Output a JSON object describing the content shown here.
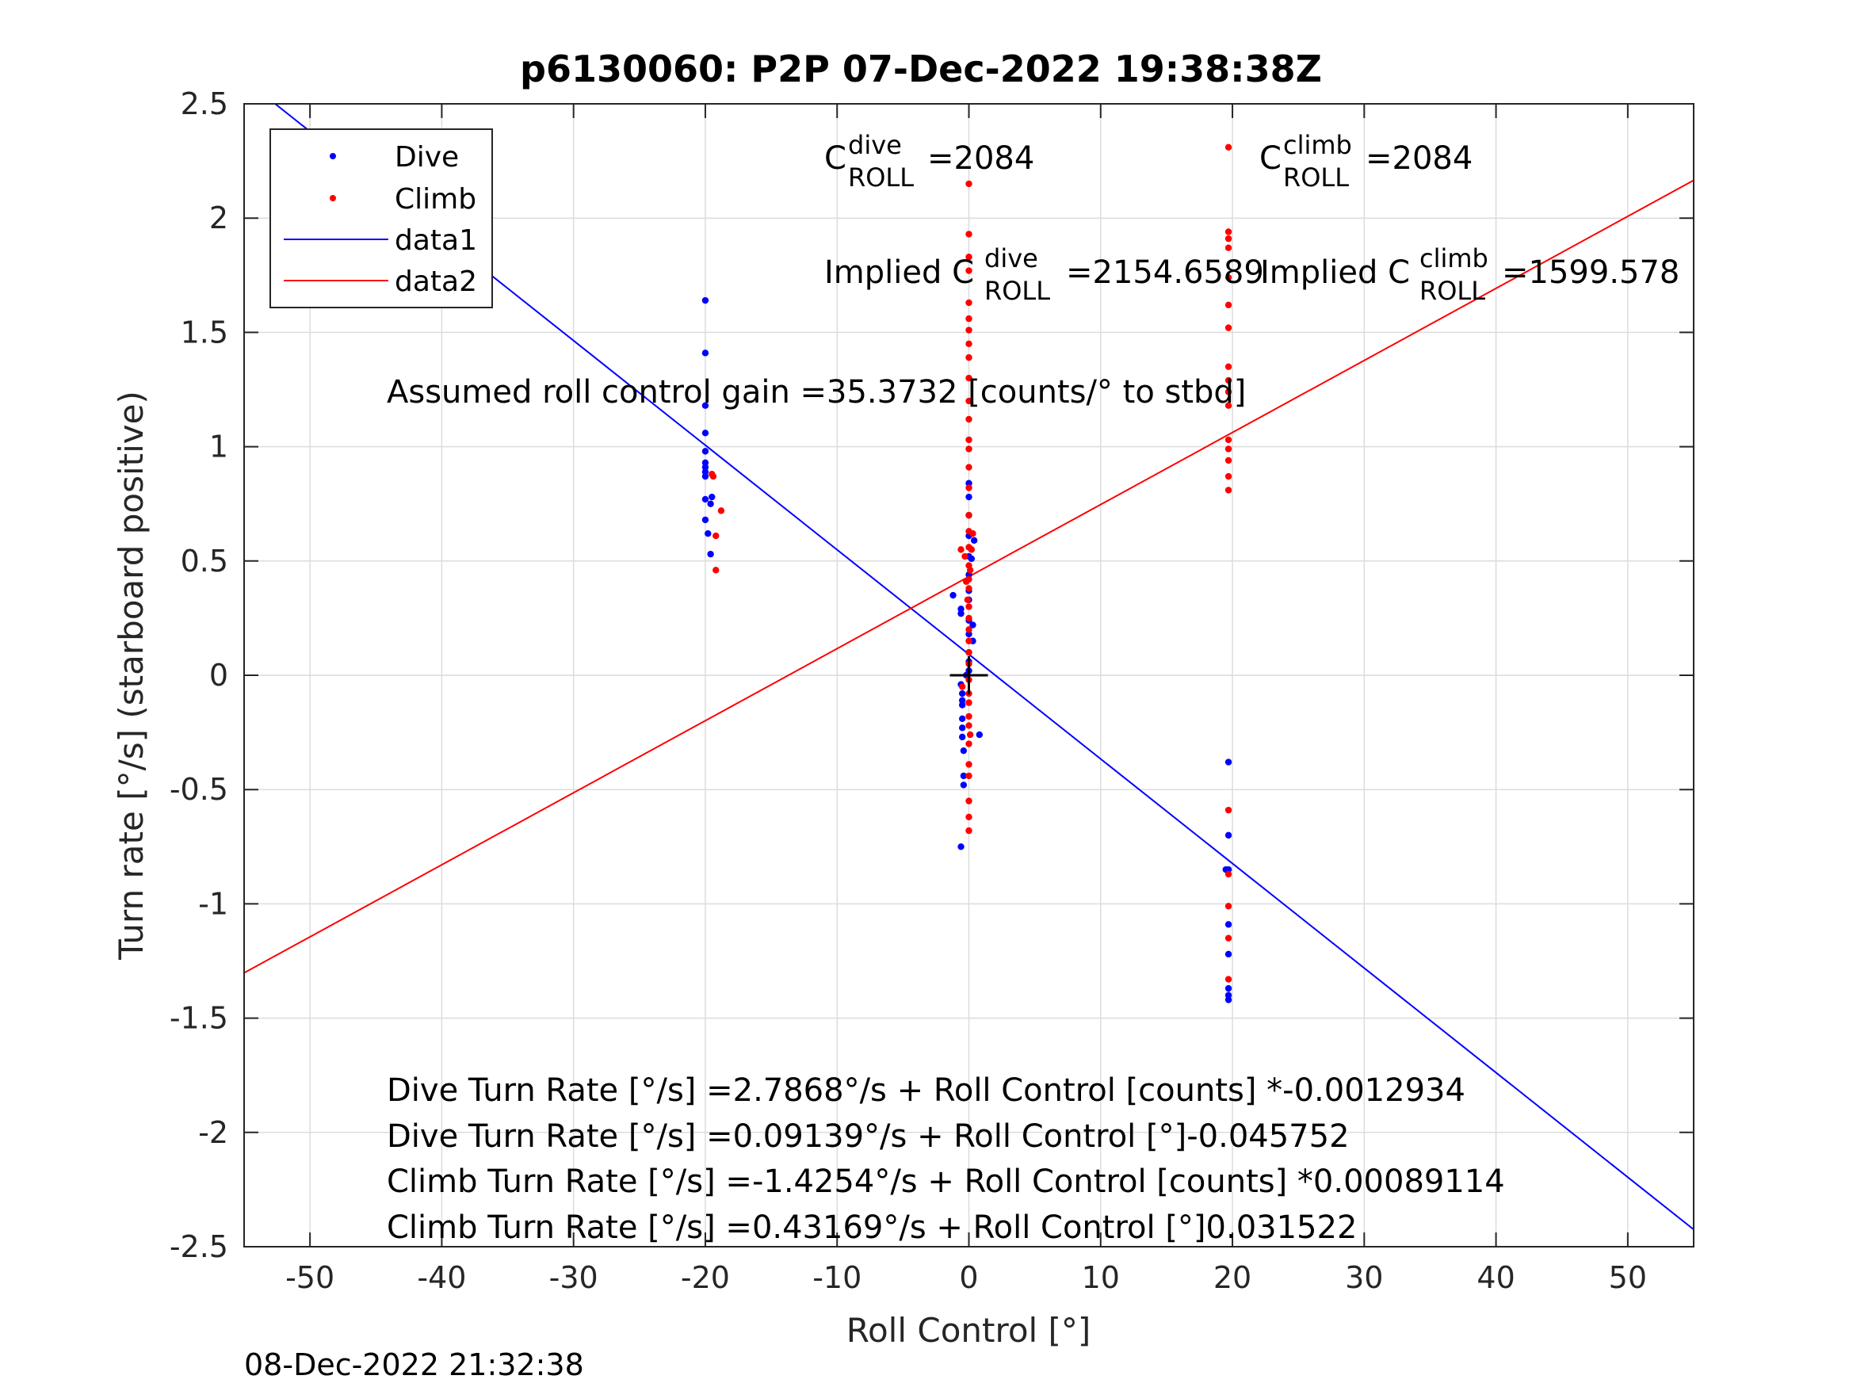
{
  "chart_data": {
    "type": "scatter",
    "title": "p6130060: P2P 07-Dec-2022 19:38:38Z",
    "xlabel": "Roll Control [°]",
    "ylabel": "Turn rate [°/s] (starboard positive)",
    "xlim": [
      -55,
      55
    ],
    "ylim": [
      -2.5,
      2.5
    ],
    "x_ticks": [
      -50,
      -40,
      -30,
      -20,
      -10,
      0,
      10,
      20,
      30,
      40,
      50
    ],
    "y_ticks": [
      -2.5,
      -2,
      -1.5,
      -1,
      -0.5,
      0,
      0.5,
      1,
      1.5,
      2,
      2.5
    ],
    "grid": true,
    "legend_position": "top-left",
    "timestamp": "08-Dec-2022 21:32:38",
    "crosshair": {
      "x": 0,
      "y": 0
    },
    "series": [
      {
        "name": "Dive",
        "kind": "points",
        "color": "#0000ff",
        "x": [
          -20,
          -20,
          -20,
          -20,
          -20,
          -20,
          -20,
          -20,
          -20,
          -20,
          -20,
          -19.8,
          -19.6,
          -19.6,
          -19.5,
          -1.2,
          -0.6,
          -0.6,
          -0.6,
          -0.5,
          -0.5,
          -0.5,
          -0.5,
          -0.5,
          -0.5,
          -0.4,
          -0.4,
          -0.4,
          -0.6,
          -0.2,
          0,
          0,
          0,
          0,
          0,
          0,
          0,
          0,
          0,
          0,
          0,
          0,
          0,
          0.2,
          0.3,
          0.3,
          0.4,
          0.8,
          19.7,
          19.7,
          19.7,
          19.7,
          19.7,
          19.7,
          19.7,
          19.7,
          19.5
        ],
        "y": [
          1.64,
          1.41,
          1.18,
          1.06,
          0.98,
          0.93,
          0.91,
          0.89,
          0.87,
          0.77,
          0.68,
          0.62,
          0.53,
          0.75,
          0.78,
          0.35,
          0.29,
          0.27,
          -0.04,
          -0.08,
          -0.11,
          -0.13,
          -0.19,
          -0.23,
          -0.27,
          -0.33,
          -0.44,
          -0.48,
          -0.75,
          0.0,
          0.84,
          0.78,
          0.7,
          0.61,
          0.52,
          0.44,
          0.37,
          0.33,
          0.24,
          0.18,
          0.1,
          0.06,
          0.02,
          0.51,
          0.22,
          0.15,
          0.59,
          -0.26,
          -0.38,
          -0.7,
          -0.85,
          -1.09,
          -1.22,
          -1.37,
          -1.4,
          -1.42,
          -0.85
        ]
      },
      {
        "name": "Climb",
        "kind": "points",
        "color": "#ff0000",
        "x": [
          -19.5,
          -19.4,
          -19.2,
          -19.2,
          -18.8,
          -0.6,
          -0.5,
          -0.3,
          -0.2,
          -0.1,
          0,
          0,
          0,
          0,
          0,
          0,
          0,
          0,
          0,
          0,
          0,
          0,
          0,
          0,
          0,
          0,
          0,
          0,
          0,
          0,
          0,
          0,
          0,
          0,
          0,
          0,
          0,
          0,
          0,
          0,
          0,
          0,
          0,
          0,
          0,
          0,
          0,
          0,
          0,
          0.1,
          0.1,
          0.2,
          0.3,
          19.7,
          19.7,
          19.7,
          19.7,
          19.7,
          19.7,
          19.7,
          19.7,
          19.7,
          19.7,
          19.7,
          19.7,
          19.7,
          19.7,
          19.7,
          19.7,
          19.7,
          19.7,
          19.7,
          19.7,
          19.7
        ],
        "y": [
          0.88,
          0.87,
          0.61,
          0.46,
          0.72,
          0.55,
          -0.05,
          0.52,
          0.41,
          0.33,
          2.15,
          1.93,
          1.83,
          1.77,
          1.63,
          1.56,
          1.51,
          1.45,
          1.39,
          1.3,
          1.2,
          1.12,
          1.03,
          0.99,
          0.91,
          0.82,
          0.7,
          0.63,
          0.56,
          0.48,
          0.42,
          0.38,
          0.3,
          0.25,
          0.2,
          0.15,
          0.1,
          0.05,
          -0.02,
          -0.08,
          -0.12,
          -0.18,
          -0.22,
          -0.3,
          -0.39,
          -0.44,
          -0.55,
          -0.62,
          -0.68,
          0.46,
          -0.26,
          0.55,
          0.62,
          2.31,
          1.94,
          1.91,
          1.87,
          1.74,
          1.62,
          1.52,
          1.35,
          1.29,
          1.24,
          1.18,
          1.03,
          0.99,
          0.94,
          0.87,
          0.81,
          -0.59,
          -0.87,
          -1.01,
          -1.15,
          -1.33
        ]
      },
      {
        "name": "data1",
        "kind": "line",
        "color": "#0000ff",
        "x": [
          -55,
          55
        ],
        "y": [
          2.6078,
          -2.4246
        ]
      },
      {
        "name": "data2",
        "kind": "line",
        "color": "#ff0000",
        "x": [
          -55,
          55
        ],
        "y": [
          -1.302,
          2.1654
        ]
      }
    ],
    "annotations": {
      "c_dive": {
        "base": "C",
        "sup": "dive",
        "sub": "ROLL",
        "value": "=2084"
      },
      "c_climb": {
        "base": "C",
        "sup": "climb",
        "sub": "ROLL",
        "value": "=2084"
      },
      "implied_dive": {
        "base": "Implied C",
        "sup": "dive",
        "sub": "ROLL",
        "value": "=2154.6589"
      },
      "implied_climb": {
        "base": "Implied C",
        "sup": "climb",
        "sub": "ROLL",
        "value": "=1599.578"
      },
      "gain": "Assumed roll control gain =35.3732 [counts/° to stbd]",
      "eq1": "Dive Turn Rate [°/s] =2.7868°/s + Roll Control [counts] *-0.0012934",
      "eq2": "Dive Turn Rate [°/s] =0.09139°/s + Roll Control [°]-0.045752",
      "eq3": "Climb Turn Rate [°/s] =-1.4254°/s + Roll Control [counts] *0.00089114",
      "eq4": "Climb Turn Rate [°/s] =0.43169°/s + Roll Control [°]0.031522"
    }
  }
}
